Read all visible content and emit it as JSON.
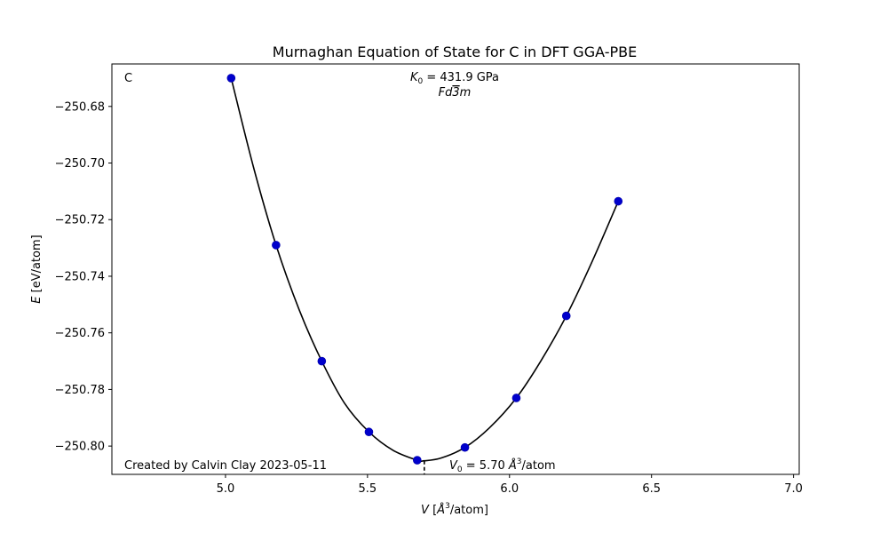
{
  "chart_data": {
    "type": "scatter",
    "title": "Murnaghan Equation of State for C in DFT GGA-PBE",
    "xlabel_var": "V",
    "xlabel_unit_pre": "[",
    "xlabel_unit_a": "Å",
    "xlabel_unit_exp": "3",
    "xlabel_unit_post": "/atom]",
    "ylabel_var": "E",
    "ylabel_unit": "[eV/atom]",
    "xlim": [
      4.6,
      7.02
    ],
    "ylim": [
      -250.81,
      -250.665
    ],
    "xticks": [
      5.0,
      5.5,
      6.0,
      6.5,
      7.0
    ],
    "xtick_labels": [
      "5.0",
      "5.5",
      "6.0",
      "6.5",
      "7.0"
    ],
    "yticks": [
      -250.68,
      -250.7,
      -250.72,
      -250.74,
      -250.76,
      -250.78,
      -250.8
    ],
    "ytick_labels": [
      "−250.68",
      "−250.70",
      "−250.72",
      "−250.74",
      "−250.76",
      "−250.78",
      "−250.80"
    ],
    "series": [
      {
        "kind": "points",
        "color": "#0000cc",
        "x": [
          5.02,
          5.178,
          5.339,
          5.505,
          5.675,
          5.843,
          6.024,
          6.2,
          6.383
        ],
        "y": [
          -250.67,
          -250.729,
          -250.77,
          -250.795,
          -250.805,
          -250.8005,
          -250.783,
          -250.754,
          -250.7135
        ]
      },
      {
        "kind": "fit",
        "color": "#000000",
        "x": [
          5.02,
          5.1,
          5.178,
          5.26,
          5.339,
          5.42,
          5.505,
          5.59,
          5.675,
          5.7,
          5.76,
          5.843,
          5.93,
          6.024,
          6.11,
          6.2,
          6.29,
          6.383
        ],
        "y": [
          -250.67,
          -250.702,
          -250.729,
          -250.752,
          -250.77,
          -250.785,
          -250.795,
          -250.8015,
          -250.805,
          -250.8052,
          -250.8042,
          -250.8005,
          -250.7935,
          -250.783,
          -250.77,
          -250.754,
          -250.735,
          -250.7135
        ]
      }
    ],
    "v0_marker": {
      "x": 5.7,
      "y_min": -250.81,
      "y_max": -250.8052
    },
    "annotations": {
      "corner_label": "C",
      "k0_symbol": "K",
      "k0_sub": "0",
      "k0_value": " = 431.9 GPa",
      "space_group_a": "Fd",
      "space_group_bar": "3",
      "space_group_b": "m",
      "credit": "Created by Calvin Clay 2023-05-11",
      "v0_symbol": "V",
      "v0_sub": "0",
      "v0_value": " = 5.70 ",
      "v0_unit_a": "Å",
      "v0_unit_exp": "3",
      "v0_unit_post": "/atom"
    },
    "grid": false,
    "legend": "none"
  }
}
